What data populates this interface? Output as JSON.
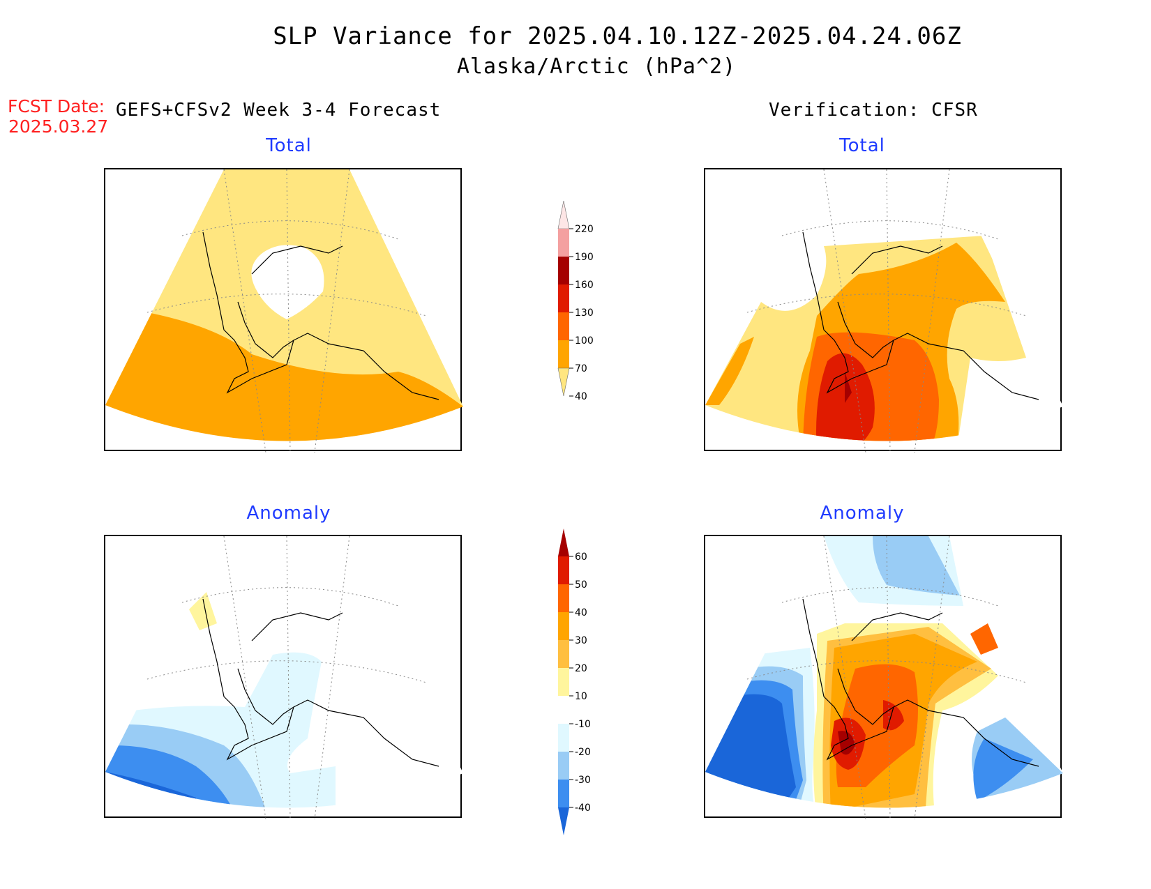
{
  "header": {
    "title": "SLP Variance for 2025.04.10.12Z-2025.04.24.06Z",
    "subtitle": "Alaska/Arctic (hPa^2)",
    "fcst_label": "FCST Date:",
    "fcst_date": "2025.03.27",
    "left_heading": "GEFS+CFSv2 Week 3-4 Forecast",
    "right_heading": "Verification: CFSR"
  },
  "panels": {
    "forecast_total": {
      "title": "Total"
    },
    "verification_total": {
      "title": "Total"
    },
    "forecast_anomaly": {
      "title": "Anomaly"
    },
    "verification_anomaly": {
      "title": "Anomaly"
    }
  },
  "colorbars": {
    "total": {
      "labels": [
        "220",
        "190",
        "160",
        "130",
        "100",
        "70",
        "40"
      ],
      "colors": [
        "#fde6e6",
        "#f4a0a0",
        "#a50000",
        "#e01b00",
        "#ff6600",
        "#ffa500",
        "#ffe680"
      ]
    },
    "anomaly": {
      "labels": [
        "60",
        "50",
        "40",
        "30",
        "20",
        "10",
        "-10",
        "-20",
        "-30",
        "-40"
      ],
      "colors": [
        "#a50000",
        "#e01b00",
        "#ff6600",
        "#ffa500",
        "#ffbf40",
        "#fff59d",
        "#ffffff",
        "#e0f8ff",
        "#99ccf5",
        "#3d8ef0",
        "#1a66d9"
      ]
    }
  },
  "colors": {
    "title_blue": "#1f3bff",
    "fcst_red": "#ff2020",
    "coast": "#000000"
  }
}
